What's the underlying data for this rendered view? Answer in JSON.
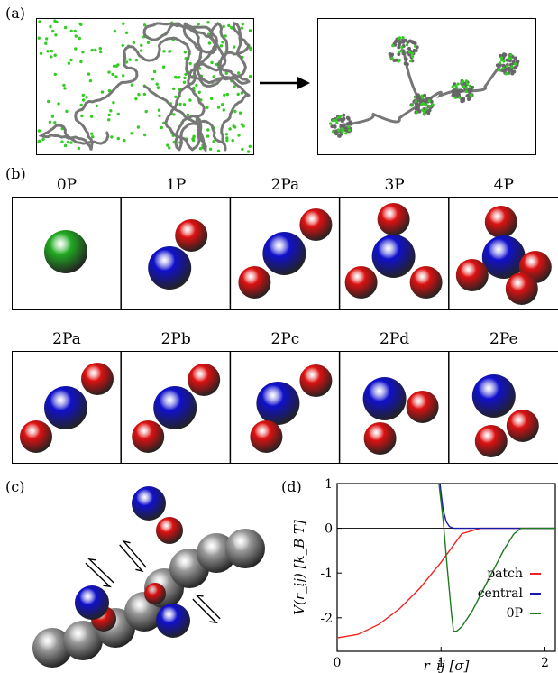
{
  "panel_labels": {
    "a": "(a)",
    "b": "(b)",
    "c": "(c)",
    "d": "(d)"
  },
  "panel_b": {
    "row1": [
      {
        "label": "0P",
        "patches": 0
      },
      {
        "label": "1P",
        "patches": 1
      },
      {
        "label": "2Pa",
        "patches": 2
      },
      {
        "label": "3P",
        "patches": 3
      },
      {
        "label": "4P",
        "patches": 4
      }
    ],
    "row2": [
      {
        "label": "2Pa"
      },
      {
        "label": "2Pb"
      },
      {
        "label": "2Pc"
      },
      {
        "label": "2Pd"
      },
      {
        "label": "2Pe"
      }
    ]
  },
  "colors": {
    "central": "#1010cc",
    "patch": "#dd1111",
    "zero_patch": "#22aa22",
    "polymer": "#777777"
  },
  "chart_data": {
    "type": "line",
    "xlabel": "r_ij [σ]",
    "ylabel": "V(r_ij) [k_B T]",
    "xlim": [
      0,
      2.1
    ],
    "ylim": [
      -2.75,
      1.0
    ],
    "xticks": [
      "0",
      "1",
      "2"
    ],
    "yticks": [
      "1",
      "0",
      "-1",
      "-2"
    ],
    "legend_position": "bottom-right",
    "series": [
      {
        "name": "patch",
        "color": "#ee2222",
        "x": [
          0,
          0.2,
          0.4,
          0.6,
          0.8,
          1.0,
          1.2,
          1.38,
          1.6,
          2.1
        ],
        "y": [
          -2.45,
          -2.37,
          -2.15,
          -1.8,
          -1.33,
          -0.76,
          -0.12,
          0,
          0,
          0
        ]
      },
      {
        "name": "central",
        "color": "#1a1aaa",
        "x": [
          0.99,
          1.0,
          1.02,
          1.05,
          1.08,
          1.12,
          2.1
        ],
        "y": [
          1.0,
          0.8,
          0.42,
          0.15,
          0.04,
          0,
          0
        ]
      },
      {
        "name": "0P",
        "color": "#1e7a1e",
        "x": [
          0.98,
          1.02,
          1.06,
          1.1,
          1.12,
          1.15,
          1.2,
          1.3,
          1.4,
          1.5,
          1.6,
          1.7,
          1.77,
          2.1
        ],
        "y": [
          1.0,
          0.2,
          -0.9,
          -1.9,
          -2.3,
          -2.3,
          -2.2,
          -1.85,
          -1.4,
          -0.95,
          -0.5,
          -0.13,
          0,
          0
        ]
      }
    ]
  }
}
